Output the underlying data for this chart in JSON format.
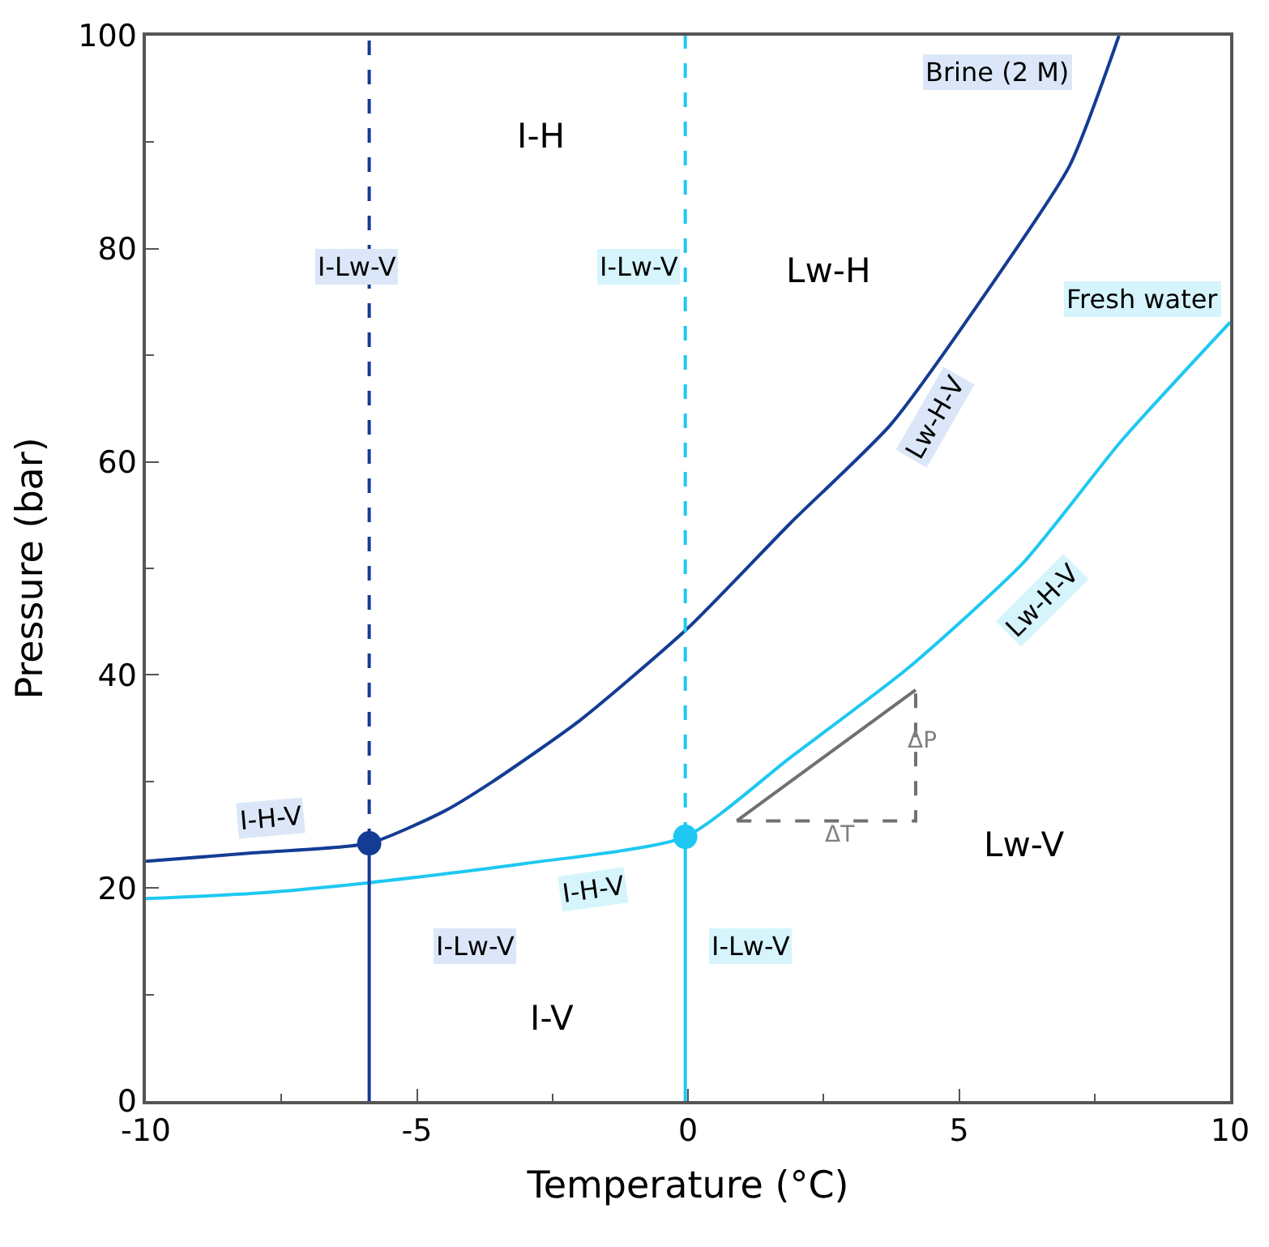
{
  "chart_data": {
    "type": "line",
    "xlabel": "Temperature (°C)",
    "ylabel": "Pressure (bar)",
    "xlim": [
      -10,
      10
    ],
    "ylim": [
      0,
      100
    ],
    "xticks": [
      -10,
      -5,
      0,
      5,
      10
    ],
    "yticks": [
      0,
      20,
      40,
      60,
      80,
      100
    ],
    "legend": false,
    "marker": "none",
    "series": [
      {
        "name": "Brine (2 M)",
        "color": "#143c94",
        "x": [
          -10,
          -8,
          -5.88,
          -4.5,
          -3.6,
          -2,
          0,
          1.9,
          3.74,
          5.57,
          7.04,
          7.95
        ],
        "values": [
          22.5,
          23.3,
          24.2,
          27.2,
          30.0,
          35.7,
          44.4,
          54.3,
          63.5,
          76.4,
          87.8,
          100
        ]
      },
      {
        "name": "Fresh water",
        "color": "#1ec8f2",
        "x": [
          -10,
          -8,
          -5.88,
          -3,
          -0.05,
          1.9,
          4.05,
          6.18,
          8.0,
          10
        ],
        "values": [
          19.0,
          19.5,
          20.5,
          22.3,
          24.8,
          32.3,
          40.6,
          50.5,
          62.0,
          73.1
        ]
      },
      {
        "color": "#143c94",
        "x": [
          -5.88,
          -5.88
        ],
        "values": [
          0,
          24.2
        ]
      },
      {
        "color": "#143c94",
        "x": [
          -5.88,
          -5.88
        ],
        "values": [
          24.2,
          100
        ],
        "line_style": "dashed"
      },
      {
        "color": "#1ec8f2",
        "x": [
          -0.05,
          -0.05
        ],
        "values": [
          0,
          24.8
        ]
      },
      {
        "color": "#1ec8f2",
        "x": [
          -0.05,
          -0.05
        ],
        "values": [
          24.8,
          100
        ],
        "line_style": "dashed"
      },
      {
        "type": "scatter",
        "marker": "circle",
        "color": "#143c94",
        "x": [
          -5.88
        ],
        "values": [
          24.2
        ]
      },
      {
        "type": "scatter",
        "marker": "circle",
        "color": "#1ec8f2",
        "x": [
          -0.05
        ],
        "values": [
          24.8
        ]
      },
      {
        "color": "#707070",
        "x": [
          0.9,
          4.2,
          4.2
        ],
        "values": [
          26.3,
          26.3,
          38.6
        ],
        "line_style": "dashed"
      },
      {
        "color": "#707070",
        "x": [
          0.9,
          4.2
        ],
        "values": [
          26.3,
          38.6
        ]
      }
    ],
    "annotations": [
      "I-H",
      "I-Lw-V",
      "I-Lw-V",
      "Lw-H",
      "Lw-H-V",
      "Lw-H-V",
      {
        "text": "I-H-V",
        "x": -7.7,
        "y": 26.5
      },
      {
        "text": "I-H-V",
        "x": -1.75,
        "y": 19.8
      },
      "Lw-V",
      "I-Lw-V",
      "I-Lw-V",
      "I-V",
      "ΔT",
      "ΔP"
    ]
  }
}
